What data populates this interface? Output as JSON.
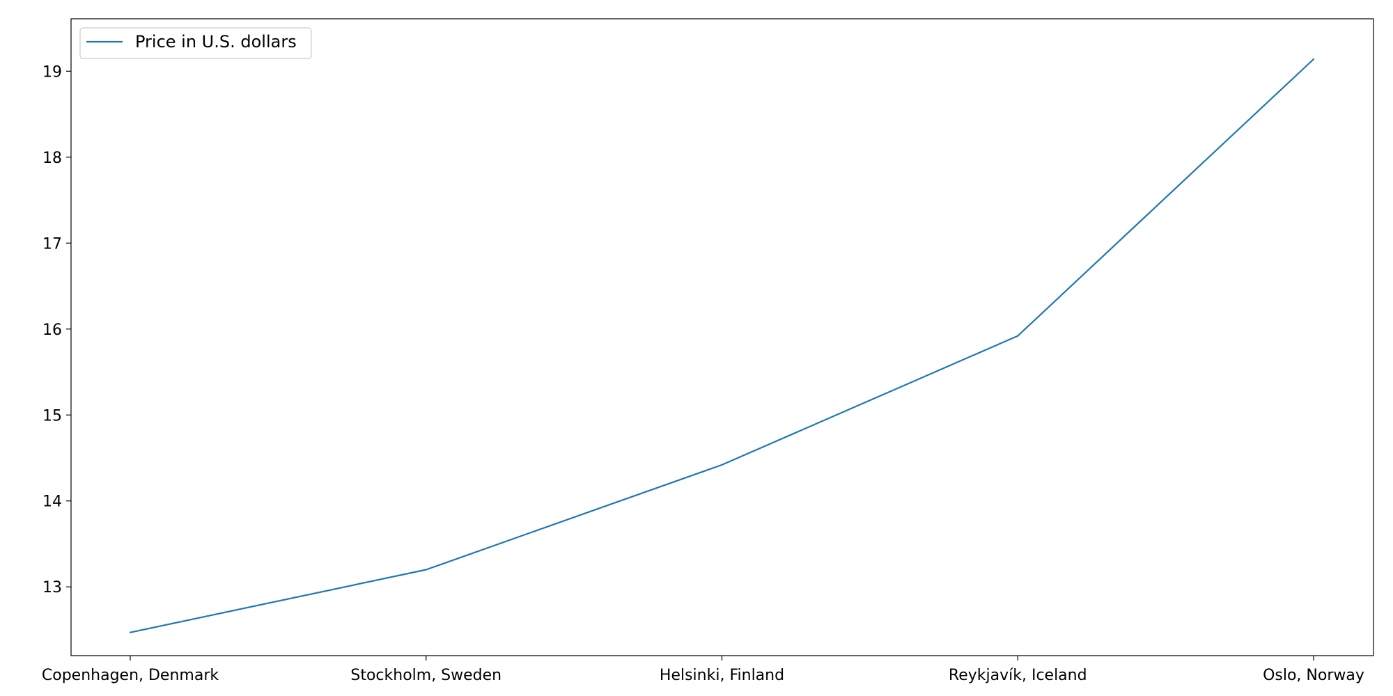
{
  "chart_data": {
    "type": "line",
    "title": "",
    "xlabel": "",
    "ylabel": "",
    "categories": [
      "Copenhagen, Denmark",
      "Stockholm, Sweden",
      "Helsinki, Finland",
      "Reykjavík, Iceland",
      "Oslo, Norway"
    ],
    "series": [
      {
        "name": "Price in U.S. dollars",
        "values": [
          12.47,
          13.2,
          14.42,
          15.92,
          19.14
        ],
        "color": "#1f77b4"
      }
    ],
    "yticks": [
      13,
      14,
      15,
      16,
      17,
      18,
      19
    ],
    "ylim": [
      12.2,
      19.61
    ],
    "grid": false,
    "legend_position": "top-left"
  }
}
